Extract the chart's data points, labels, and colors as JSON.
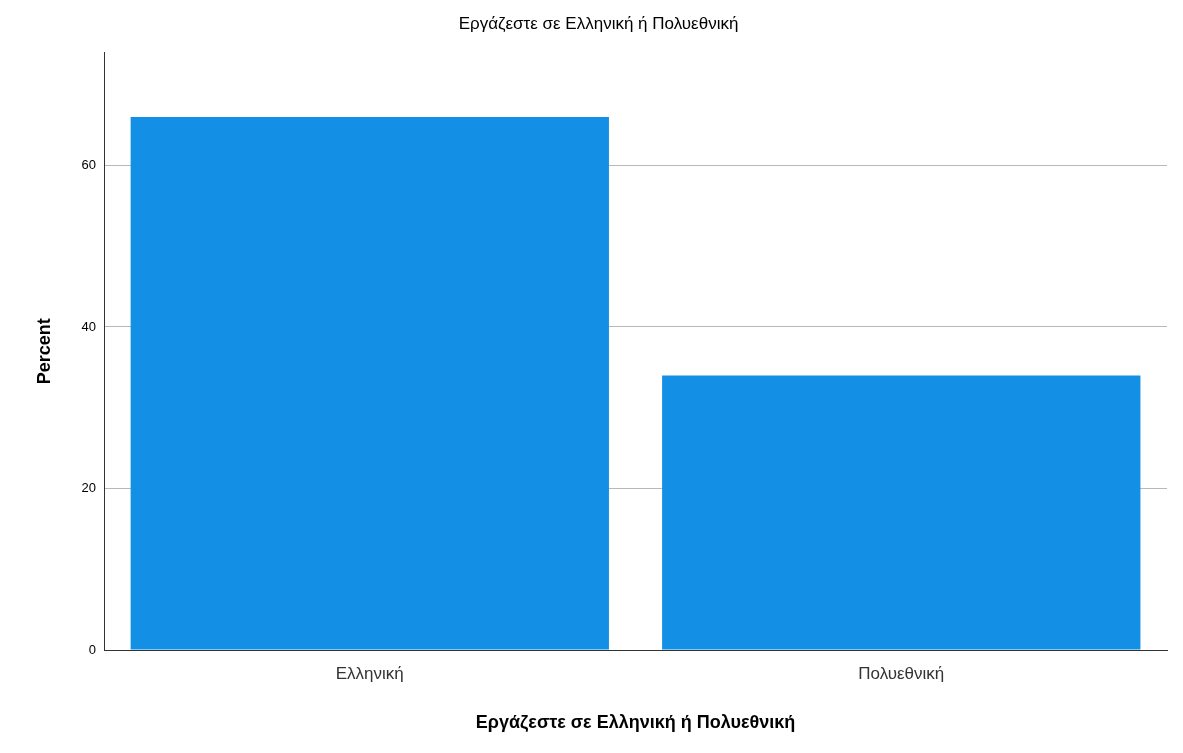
{
  "chart_data": {
    "type": "bar",
    "title": "Εργάζεστε σε Ελληνική ή Πολυεθνική",
    "xlabel": "Εργάζεστε σε Ελληνική ή Πολυεθνική",
    "ylabel": "Percent",
    "categories": [
      "Ελληνική",
      "Πολυεθνική"
    ],
    "values": [
      66,
      34
    ],
    "color": "#1390e6",
    "ylim": [
      0,
      74
    ],
    "yticks": [
      0,
      20,
      40,
      60
    ],
    "grid": "y",
    "legend": false
  }
}
